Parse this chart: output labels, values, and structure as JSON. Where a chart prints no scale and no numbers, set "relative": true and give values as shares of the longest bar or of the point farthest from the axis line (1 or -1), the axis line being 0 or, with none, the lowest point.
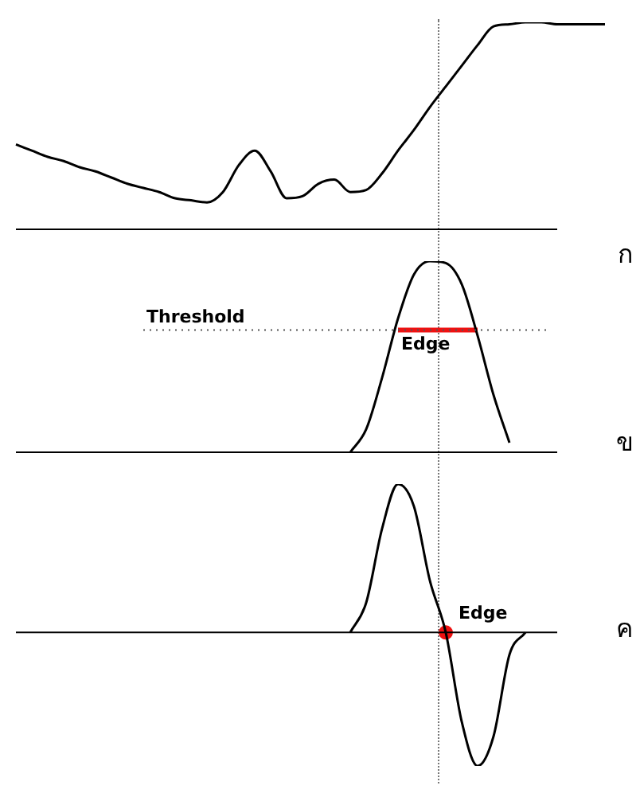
{
  "chart_data": [
    {
      "type": "line",
      "title": "ก",
      "relative": true,
      "categories": [
        null,
        null,
        null,
        null,
        null,
        null,
        null,
        null,
        null,
        null,
        null,
        null,
        null,
        null,
        null,
        null,
        null,
        null,
        null,
        null,
        null,
        null,
        null,
        null,
        null,
        null,
        null,
        null,
        null,
        null,
        null,
        null,
        null,
        null,
        null,
        null,
        null,
        null
      ],
      "series": [
        {
          "color": "#000000",
          "values": [
            0.41,
            0.38,
            0.35,
            0.33,
            0.3,
            0.28,
            0.25,
            0.22,
            0.2,
            0.18,
            0.15,
            0.14,
            0.13,
            0.18,
            0.31,
            0.38,
            0.28,
            0.15,
            0.16,
            0.22,
            0.24,
            0.18,
            0.19,
            0.27,
            0.38,
            0.48,
            0.59,
            0.69,
            0.79,
            0.89,
            0.98,
            0.99,
            1,
            1,
            0.99,
            0.99,
            0.99,
            0.99
          ]
        }
      ]
    },
    {
      "type": "line",
      "title": "ข",
      "relative": true,
      "categories": [
        null,
        null,
        null,
        null,
        null,
        null,
        null,
        null,
        null,
        null,
        null,
        null,
        null,
        null,
        null,
        null,
        null,
        null,
        null,
        null,
        null,
        null,
        null,
        null,
        null,
        null,
        null,
        null,
        null,
        null,
        null,
        null,
        null,
        null,
        null,
        null,
        null,
        null
      ],
      "ref_lines": [
        {
          "axis": "y",
          "value": 0.64,
          "label": "Threshold",
          "color": "#555555",
          "line_style": "dotted"
        }
      ],
      "annotations": [
        "Edge"
      ],
      "series": [
        {
          "color": "#000000",
          "values": [
            null,
            null,
            null,
            null,
            null,
            null,
            null,
            null,
            null,
            null,
            null,
            null,
            null,
            null,
            null,
            null,
            null,
            null,
            null,
            null,
            null,
            0,
            0.12,
            0.39,
            0.7,
            0.93,
            1,
            0.99,
            0.88,
            0.61,
            0.3,
            0.05,
            null,
            null,
            null,
            null,
            null,
            null
          ]
        },
        {
          "color": "#ee1111",
          "values": [
            null,
            null,
            null,
            null,
            null,
            null,
            null,
            null,
            null,
            null,
            null,
            null,
            null,
            null,
            null,
            null,
            null,
            null,
            null,
            null,
            null,
            null,
            null,
            null,
            0.64,
            null,
            null,
            null,
            null,
            0.64,
            null,
            null,
            null,
            null,
            null,
            null,
            null,
            null
          ]
        }
      ]
    },
    {
      "type": "line",
      "title": "ค",
      "relative": true,
      "categories": [
        null,
        null,
        null,
        null,
        null,
        null,
        null,
        null,
        null,
        null,
        null,
        null,
        null,
        null,
        null,
        null,
        null,
        null,
        null,
        null,
        null,
        null,
        null,
        null,
        null,
        null,
        null,
        null,
        null,
        null,
        null,
        null,
        null,
        null,
        null,
        null,
        null,
        null
      ],
      "annotations": [
        "Edge"
      ],
      "series": [
        {
          "color": "#000000",
          "values": [
            null,
            null,
            null,
            null,
            null,
            null,
            null,
            null,
            null,
            null,
            null,
            null,
            null,
            null,
            null,
            null,
            null,
            null,
            null,
            null,
            null,
            0,
            0.2,
            0.7,
            1,
            0.85,
            0.35,
            0,
            -0.6,
            -0.9,
            -0.7,
            -0.15,
            0,
            null,
            null,
            null,
            null,
            null
          ]
        },
        {
          "type": "scatter",
          "marker": "circle",
          "color": "#ee1111",
          "values": [
            null,
            null,
            null,
            null,
            null,
            null,
            null,
            null,
            null,
            null,
            null,
            null,
            null,
            null,
            null,
            null,
            null,
            null,
            null,
            null,
            null,
            null,
            null,
            null,
            null,
            null,
            null,
            0,
            null,
            null,
            null,
            null,
            null,
            null,
            null,
            null,
            null,
            null
          ]
        }
      ]
    }
  ]
}
